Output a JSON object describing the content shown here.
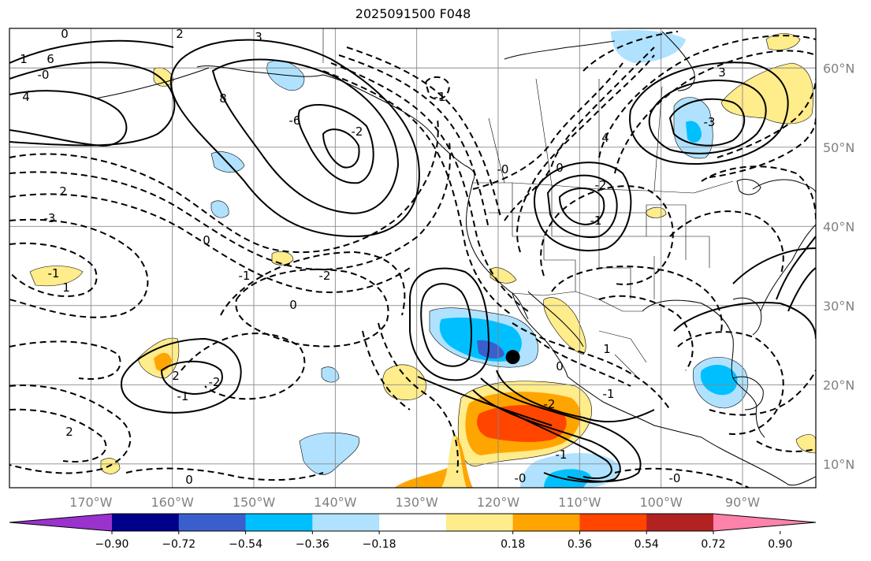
{
  "title": "2025091500 F048",
  "map": {
    "projection": "PlateCarree",
    "lon_range": [
      -180,
      -81
    ],
    "lat_range": [
      7,
      65
    ],
    "gridlines": true,
    "lat_labels": [
      "60°N",
      "50°N",
      "40°N",
      "30°N",
      "20°N",
      "10°N"
    ],
    "lon_labels": [
      "170°W",
      "160°W",
      "150°W",
      "140°W",
      "130°W",
      "120°W",
      "110°W",
      "100°W",
      "90°W"
    ],
    "marker": {
      "lon": -118.2,
      "lat": 23.5,
      "color": "#000000"
    },
    "contour_labels": [
      "2",
      "3",
      "0",
      "1",
      "-0",
      "4",
      "6",
      "8",
      "-6",
      "-2",
      "-1",
      "2",
      "-3",
      "-0",
      "0",
      "-2",
      "-1",
      "3",
      "-3",
      "4",
      "0",
      "-1",
      "-2",
      "0",
      "-1",
      "1",
      "2",
      "-2",
      "-1",
      "0",
      "1",
      "-1",
      "-2",
      "-1",
      "-0",
      "0",
      "2",
      "-0"
    ]
  },
  "colorbar": {
    "ticks": [
      "−0.90",
      "−0.72",
      "−0.54",
      "−0.36",
      "−0.18",
      "0.18",
      "0.36",
      "0.54",
      "0.72",
      "0.90"
    ],
    "colors": [
      "#9a32cd",
      "#00008b",
      "#3a5fcd",
      "#00bfff",
      "#b0e2ff",
      "#ffffff",
      "#ffec8b",
      "#ffa500",
      "#ff4500",
      "#b22222",
      "#ff82ab"
    ]
  }
}
